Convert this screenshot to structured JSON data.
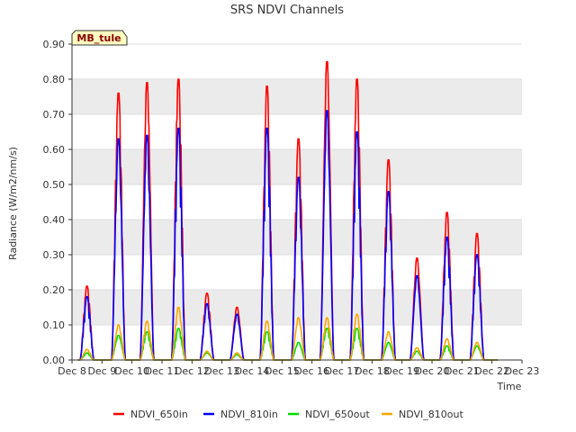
{
  "chart_data": {
    "type": "line",
    "title": "SRS NDVI Channels",
    "xlabel": "Time",
    "ylabel": "Radiance (W/m2/nm/s)",
    "ylim": [
      0,
      0.9
    ],
    "yticks": [
      "0.00",
      "0.10",
      "0.20",
      "0.30",
      "0.40",
      "0.50",
      "0.60",
      "0.70",
      "0.80",
      "0.90"
    ],
    "x_ticks": [
      "Dec 8",
      "Dec 9",
      "Dec 10",
      "Dec 11",
      "Dec 12",
      "Dec 13",
      "Dec 14",
      "Dec 15",
      "Dec 16",
      "Dec 17",
      "Dec 18",
      "Dec 19",
      "Dec 20",
      "Dec 21",
      "Dec 22",
      "Dec 23"
    ],
    "xlim_days": [
      8,
      23
    ],
    "grid": true,
    "legend_position": "bottom",
    "badge": "MB_tule",
    "series": [
      {
        "name": "NDVI_650in",
        "color": "#ff0000",
        "peaks": [
          [
            8.5,
            0.21
          ],
          [
            9.55,
            0.76
          ],
          [
            10.5,
            0.79
          ],
          [
            11.55,
            0.8
          ],
          [
            12.5,
            0.19
          ],
          [
            13.5,
            0.15
          ],
          [
            14.5,
            0.78
          ],
          [
            15.55,
            0.63
          ],
          [
            16.5,
            0.85
          ],
          [
            17.5,
            0.8
          ],
          [
            18.55,
            0.57
          ],
          [
            19.5,
            0.29
          ],
          [
            20.5,
            0.42
          ],
          [
            21.5,
            0.36
          ]
        ]
      },
      {
        "name": "NDVI_810in",
        "color": "#0000ff",
        "peaks": [
          [
            8.5,
            0.18
          ],
          [
            9.55,
            0.63
          ],
          [
            10.5,
            0.64
          ],
          [
            11.55,
            0.66
          ],
          [
            12.5,
            0.16
          ],
          [
            13.5,
            0.13
          ],
          [
            14.5,
            0.66
          ],
          [
            15.55,
            0.52
          ],
          [
            16.5,
            0.71
          ],
          [
            17.5,
            0.65
          ],
          [
            18.55,
            0.48
          ],
          [
            19.5,
            0.24
          ],
          [
            20.5,
            0.35
          ],
          [
            21.5,
            0.3
          ]
        ]
      },
      {
        "name": "NDVI_650out",
        "color": "#00dd00",
        "peaks": [
          [
            8.5,
            0.02
          ],
          [
            9.55,
            0.07
          ],
          [
            10.5,
            0.08
          ],
          [
            11.55,
            0.09
          ],
          [
            12.5,
            0.02
          ],
          [
            13.5,
            0.015
          ],
          [
            14.5,
            0.08
          ],
          [
            15.55,
            0.05
          ],
          [
            16.5,
            0.09
          ],
          [
            17.5,
            0.09
          ],
          [
            18.55,
            0.05
          ],
          [
            19.5,
            0.025
          ],
          [
            20.5,
            0.04
          ],
          [
            21.5,
            0.04
          ]
        ]
      },
      {
        "name": "NDVI_810out",
        "color": "#ffa500",
        "peaks": [
          [
            8.5,
            0.03
          ],
          [
            9.55,
            0.1
          ],
          [
            10.5,
            0.11
          ],
          [
            11.55,
            0.15
          ],
          [
            12.5,
            0.025
          ],
          [
            13.5,
            0.02
          ],
          [
            14.5,
            0.11
          ],
          [
            15.55,
            0.12
          ],
          [
            16.5,
            0.12
          ],
          [
            17.5,
            0.13
          ],
          [
            18.55,
            0.08
          ],
          [
            19.5,
            0.035
          ],
          [
            20.5,
            0.06
          ],
          [
            21.5,
            0.05
          ]
        ]
      }
    ]
  }
}
